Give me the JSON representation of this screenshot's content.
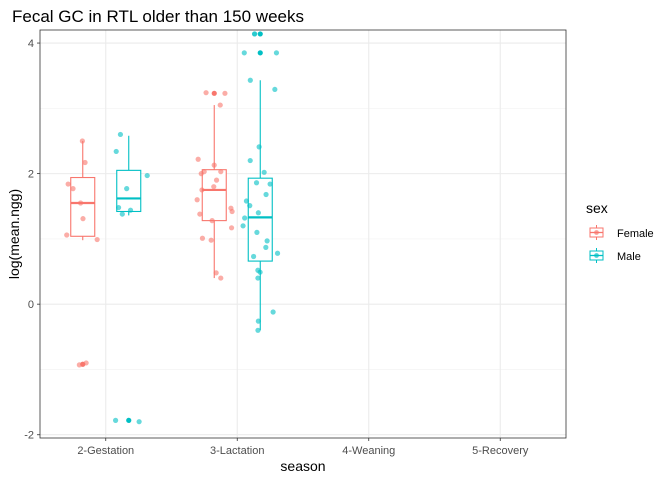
{
  "chart_data": {
    "type": "scatter",
    "subtype": "boxplot-with-jittered-points",
    "title": "Fecal GC in RTL older than 150 weeks",
    "xlabel": "season",
    "ylabel": "log(mean.ngg)",
    "categories": [
      "2-Gestation",
      "3-Lactation",
      "4-Weaning",
      "5-Recovery"
    ],
    "ylim": [
      -2.05,
      4.2
    ],
    "yticks": [
      -2,
      0,
      2,
      4
    ],
    "grid": true,
    "legend": {
      "title": "sex",
      "position": "right",
      "entries": [
        "Female",
        "Male"
      ]
    },
    "colors": {
      "Female": "#F8766D",
      "Male": "#00BFC4"
    },
    "series": [
      {
        "name": "Female",
        "boxes": [
          {
            "category": "2-Gestation",
            "whisker_low": 0.98,
            "q1": 1.04,
            "median": 1.55,
            "q3": 1.94,
            "whisker_high": 2.5,
            "outliers": [
              -0.92
            ]
          },
          {
            "category": "3-Lactation",
            "whisker_low": 0.4,
            "q1": 1.28,
            "median": 1.75,
            "q3": 2.06,
            "whisker_high": 3.05,
            "outliers": [
              3.23
            ]
          }
        ],
        "points": [
          {
            "category": "2-Gestation",
            "values": [
              2.5,
              2.17,
              1.84,
              1.77,
              1.55,
              1.31,
              1.06,
              0.99,
              -0.9,
              -0.93
            ]
          },
          {
            "category": "3-Lactation",
            "values": [
              3.24,
              3.23,
              3.05,
              2.22,
              2.13,
              2.03,
              2.03,
              2.0,
              1.9,
              1.8,
              1.75,
              1.6,
              1.47,
              1.42,
              1.38,
              1.28,
              1.17,
              1.01,
              0.98,
              0.48,
              0.4
            ]
          }
        ]
      },
      {
        "name": "Male",
        "boxes": [
          {
            "category": "2-Gestation",
            "whisker_low": 1.36,
            "q1": 1.42,
            "median": 1.62,
            "q3": 2.05,
            "whisker_high": 2.58,
            "outliers": [
              -1.78
            ]
          },
          {
            "category": "3-Lactation",
            "whisker_low": -0.4,
            "q1": 0.66,
            "median": 1.33,
            "q3": 1.93,
            "whisker_high": 3.43,
            "outliers": [
              4.14,
              3.85
            ]
          }
        ],
        "points": [
          {
            "category": "2-Gestation",
            "values": [
              2.6,
              2.34,
              1.97,
              1.77,
              1.48,
              1.44,
              1.38,
              -1.78,
              -1.8
            ]
          },
          {
            "category": "3-Lactation",
            "values": [
              4.14,
              4.14,
              3.85,
              3.85,
              3.43,
              3.29,
              2.41,
              2.2,
              2.02,
              1.86,
              1.84,
              1.68,
              1.58,
              1.51,
              1.4,
              1.32,
              1.2,
              1.1,
              0.97,
              0.87,
              0.78,
              0.73,
              0.52,
              0.49,
              0.4,
              -0.12,
              -0.26,
              -0.4
            ]
          }
        ]
      }
    ]
  }
}
